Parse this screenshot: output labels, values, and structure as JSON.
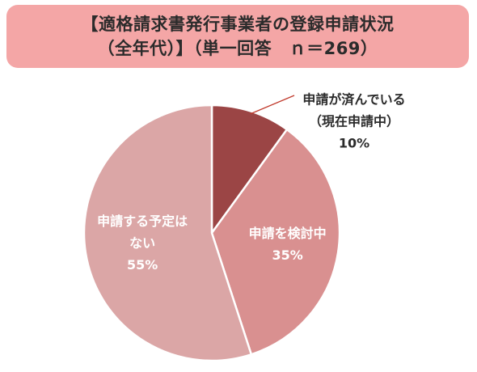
{
  "title": {
    "line1": "【適格請求書発行事業者の登録申請状況",
    "line2": "（全年代）】（単一回答　ｎ＝269）"
  },
  "chart_data": {
    "type": "pie",
    "title": "【適格請求書発行事業者の登録申請状況（全年代）】（単一回答　ｎ＝269）",
    "slices": [
      {
        "label_lines": [
          "申請が済んでいる",
          "（現在申請中）"
        ],
        "value": 10,
        "value_label": "10%",
        "color": "#9b4545"
      },
      {
        "label_lines": [
          "申請を検討中"
        ],
        "value": 35,
        "value_label": "35%",
        "color": "#d99090"
      },
      {
        "label_lines": [
          "申請する予定は",
          "ない"
        ],
        "value": 55,
        "value_label": "55%",
        "color": "#dba6a6"
      }
    ]
  }
}
